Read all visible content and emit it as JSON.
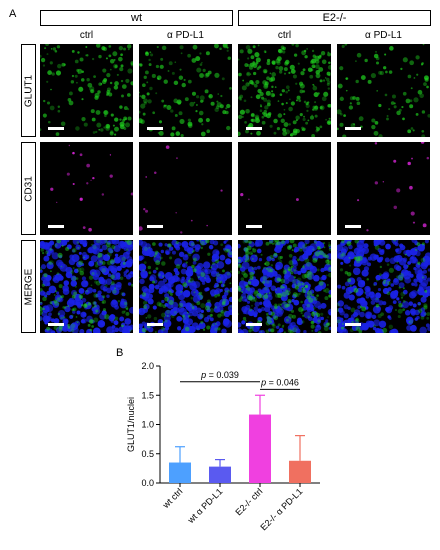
{
  "panel_a": {
    "letter": "A",
    "groups": [
      "wt",
      "E2-/-"
    ],
    "columns": [
      "ctrl",
      "α PD-L1",
      "ctrl",
      "α PD-L1"
    ],
    "rows": [
      "GLUT1",
      "CD31",
      "MERGE"
    ],
    "colors": {
      "glut1": "#1fd21f",
      "cd31": "#c822c8",
      "nuclei": "#1a22e6"
    },
    "glut1_intensity": [
      0.55,
      0.5,
      0.95,
      0.35
    ],
    "cd31_intensity": [
      0.45,
      0.3,
      0.08,
      0.4
    ]
  },
  "panel_b": {
    "letter": "B"
  },
  "chart_data": {
    "type": "bar",
    "categories": [
      "wt ctrl",
      "wt α PD-L1",
      "E2-/- ctrl",
      "E2-/- α PD-L1"
    ],
    "values": [
      0.35,
      0.28,
      1.17,
      0.38
    ],
    "errors": [
      0.27,
      0.12,
      0.33,
      0.43
    ],
    "colors": [
      "#4da0ff",
      "#5a5af0",
      "#f040e0",
      "#f07060"
    ],
    "ylabel": "GLUT1/nuclei",
    "ylim": [
      0,
      2.0
    ],
    "yticks": [
      "0.0",
      "0.5",
      "1.0",
      "1.5",
      "2.0"
    ],
    "annotations": [
      {
        "p": "p",
        "eq": " = 0.039",
        "from": 0,
        "to": 2,
        "y": 1.73
      },
      {
        "p": "p",
        "eq": " = 0.046",
        "from": 2,
        "to": 3,
        "y": 1.6
      }
    ]
  }
}
